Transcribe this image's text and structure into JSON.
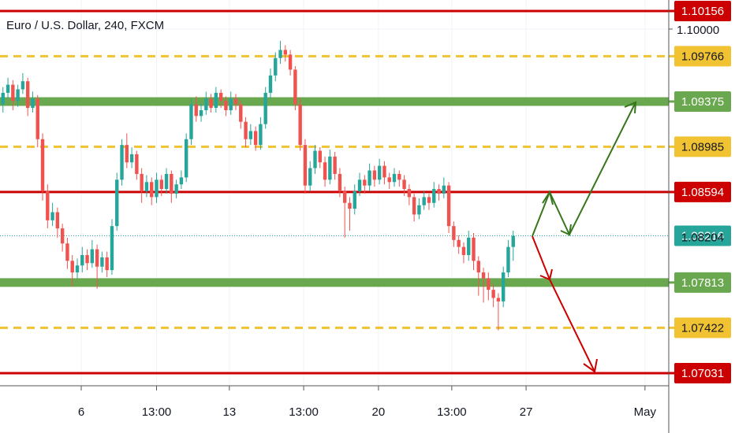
{
  "chart_data": {
    "type": "candlestick",
    "title": "Euro / U.S. Dollar, 240, FXCM",
    "ylim": [
      1.06922,
      1.10251
    ],
    "xlim": [
      -0.6,
      134.4
    ],
    "yticks": [
      {
        "value": 1.1,
        "label": "1.10000"
      }
    ],
    "xticks": [
      {
        "value": 15.8,
        "label": "6"
      },
      {
        "value": 31,
        "label": "13:00"
      },
      {
        "value": 45.7,
        "label": "13"
      },
      {
        "value": 60.7,
        "label": "13:00"
      },
      {
        "value": 75.8,
        "label": "20"
      },
      {
        "value": 90.6,
        "label": "13:00"
      },
      {
        "value": 105.6,
        "label": "27"
      },
      {
        "value": 129.6,
        "label": "May"
      }
    ],
    "up_color": "#26a69a",
    "down_color": "#ef5350",
    "grid": true,
    "levels": [
      {
        "value": 1.10156,
        "color": "#cc0000",
        "style": "solid"
      },
      {
        "value": 1.09766,
        "color": "#f1c232",
        "style": "dashed"
      },
      {
        "value": 1.09375,
        "color": "#6aa84f",
        "style": "thick"
      },
      {
        "value": 1.08985,
        "color": "#f1c232",
        "style": "dashed"
      },
      {
        "value": 1.08594,
        "color": "#cc0000",
        "style": "solid"
      },
      {
        "value": 1.07813,
        "color": "#6aa84f",
        "style": "thick"
      },
      {
        "value": 1.07422,
        "color": "#f1c232",
        "style": "dashed"
      },
      {
        "value": 1.07031,
        "color": "#cc0000",
        "style": "solid"
      }
    ],
    "last_price": {
      "value": 1.08216,
      "color": "#26a69a"
    },
    "bid_price": {
      "value": 1.08204
    },
    "candles": [
      [
        1.0935,
        1.095,
        1.0928,
        1.0945
      ],
      [
        1.0945,
        1.0958,
        1.094,
        1.0952
      ],
      [
        1.0952,
        1.0956,
        1.093,
        1.0938
      ],
      [
        1.0938,
        1.0952,
        1.0933,
        1.0948
      ],
      [
        1.0948,
        1.0962,
        1.0944,
        1.0955
      ],
      [
        1.0955,
        1.0958,
        1.0925,
        1.0932
      ],
      [
        1.0932,
        1.0946,
        1.0928,
        1.094
      ],
      [
        1.094,
        1.0943,
        1.0898,
        1.0905
      ],
      [
        1.0905,
        1.091,
        1.0852,
        1.086
      ],
      [
        1.086,
        1.0866,
        1.0828,
        1.0835
      ],
      [
        1.0835,
        1.085,
        1.083,
        1.0842
      ],
      [
        1.0842,
        1.0846,
        1.082,
        1.0828
      ],
      [
        1.0828,
        1.0832,
        1.0808,
        1.0815
      ],
      [
        1.0815,
        1.082,
        1.0793,
        1.08
      ],
      [
        1.08,
        1.0805,
        1.0778,
        1.079
      ],
      [
        1.079,
        1.0802,
        1.0785,
        1.0796
      ],
      [
        1.0796,
        1.0812,
        1.079,
        1.0805
      ],
      [
        1.0805,
        1.081,
        1.0792,
        1.0798
      ],
      [
        1.0798,
        1.0818,
        1.0794,
        1.081
      ],
      [
        1.081,
        1.0814,
        1.0776,
        1.0795
      ],
      [
        1.0795,
        1.0808,
        1.079,
        1.0803
      ],
      [
        1.0803,
        1.0808,
        1.0786,
        1.0792
      ],
      [
        1.0792,
        1.0836,
        1.0788,
        1.083
      ],
      [
        1.083,
        1.0876,
        1.0826,
        1.087
      ],
      [
        1.087,
        1.0905,
        1.0865,
        1.09
      ],
      [
        1.09,
        1.091,
        1.088,
        1.0885
      ],
      [
        1.0885,
        1.0898,
        1.088,
        1.0892
      ],
      [
        1.0892,
        1.0895,
        1.087,
        1.0875
      ],
      [
        1.0875,
        1.088,
        1.085,
        1.086
      ],
      [
        1.086,
        1.0874,
        1.0855,
        1.0868
      ],
      [
        1.0868,
        1.0872,
        1.0848,
        1.0855
      ],
      [
        1.0855,
        1.0876,
        1.085,
        1.087
      ],
      [
        1.087,
        1.0874,
        1.0856,
        1.0862
      ],
      [
        1.0862,
        1.088,
        1.0858,
        1.0875
      ],
      [
        1.0875,
        1.0878,
        1.085,
        1.0858
      ],
      [
        1.0858,
        1.087,
        1.0854,
        1.0866
      ],
      [
        1.0866,
        1.0878,
        1.0862,
        1.0872
      ],
      [
        1.0872,
        1.091,
        1.0868,
        1.0905
      ],
      [
        1.0905,
        1.094,
        1.09,
        1.0935
      ],
      [
        1.0935,
        1.0942,
        1.092,
        1.0925
      ],
      [
        1.0925,
        1.0936,
        1.092,
        1.093
      ],
      [
        1.093,
        1.0946,
        1.0926,
        1.094
      ],
      [
        1.094,
        1.0944,
        1.0928,
        1.0932
      ],
      [
        1.0932,
        1.095,
        1.0928,
        1.0945
      ],
      [
        1.0945,
        1.0948,
        1.0932,
        1.0938
      ],
      [
        1.0938,
        1.0942,
        1.0925,
        1.093
      ],
      [
        1.093,
        1.0946,
        1.0926,
        1.094
      ],
      [
        1.094,
        1.0944,
        1.093,
        1.0935
      ],
      [
        1.0935,
        1.0938,
        1.0914,
        1.092
      ],
      [
        1.092,
        1.0924,
        1.0898,
        1.0905
      ],
      [
        1.0905,
        1.0918,
        1.09,
        1.0912
      ],
      [
        1.0912,
        1.0916,
        1.0895,
        1.09
      ],
      [
        1.09,
        1.0924,
        1.0896,
        1.0918
      ],
      [
        1.0918,
        1.095,
        1.0914,
        1.0945
      ],
      [
        1.0945,
        1.0966,
        1.094,
        1.096
      ],
      [
        1.096,
        1.098,
        1.0955,
        1.0975
      ],
      [
        1.0975,
        1.099,
        1.097,
        1.0982
      ],
      [
        1.0982,
        1.0986,
        1.0972,
        1.0978
      ],
      [
        1.0978,
        1.0982,
        1.096,
        1.0965
      ],
      [
        1.0965,
        1.0968,
        1.093,
        1.0935
      ],
      [
        1.0935,
        1.094,
        1.0895,
        1.09
      ],
      [
        1.09,
        1.0905,
        1.0858,
        1.0865
      ],
      [
        1.0865,
        1.0886,
        1.086,
        1.088
      ],
      [
        1.088,
        1.09,
        1.0875,
        1.0895
      ],
      [
        1.0895,
        1.0898,
        1.088,
        1.0885
      ],
      [
        1.0885,
        1.089,
        1.0864,
        1.087
      ],
      [
        1.087,
        1.0896,
        1.0866,
        1.089
      ],
      [
        1.089,
        1.0894,
        1.087,
        1.0875
      ],
      [
        1.0875,
        1.088,
        1.0855,
        1.086
      ],
      [
        1.086,
        1.0864,
        1.082,
        1.085
      ],
      [
        1.085,
        1.0855,
        1.0826,
        1.0845
      ],
      [
        1.0845,
        1.0866,
        1.084,
        1.086
      ],
      [
        1.086,
        1.0876,
        1.0856,
        1.087
      ],
      [
        1.087,
        1.0874,
        1.0858,
        1.0865
      ],
      [
        1.0865,
        1.0884,
        1.086,
        1.0878
      ],
      [
        1.0878,
        1.0882,
        1.0864,
        1.087
      ],
      [
        1.087,
        1.0888,
        1.0866,
        1.0882
      ],
      [
        1.0882,
        1.0886,
        1.0866,
        1.0872
      ],
      [
        1.0872,
        1.0876,
        1.0862,
        1.0868
      ],
      [
        1.0868,
        1.088,
        1.0864,
        1.0875
      ],
      [
        1.0875,
        1.0878,
        1.0864,
        1.087
      ],
      [
        1.087,
        1.0874,
        1.0856,
        1.0862
      ],
      [
        1.0862,
        1.0866,
        1.0848,
        1.0855
      ],
      [
        1.0855,
        1.0858,
        1.0834,
        1.084
      ],
      [
        1.084,
        1.0854,
        1.0836,
        1.0848
      ],
      [
        1.0848,
        1.086,
        1.0844,
        1.0855
      ],
      [
        1.0855,
        1.0858,
        1.0844,
        1.085
      ],
      [
        1.085,
        1.0868,
        1.0846,
        1.0862
      ],
      [
        1.0862,
        1.0866,
        1.0852,
        1.0858
      ],
      [
        1.0858,
        1.0872,
        1.0854,
        1.0865
      ],
      [
        1.0865,
        1.0868,
        1.0824,
        1.083
      ],
      [
        1.083,
        1.0834,
        1.0812,
        1.0818
      ],
      [
        1.0818,
        1.0822,
        1.0806,
        1.0812
      ],
      [
        1.0812,
        1.0816,
        1.0798,
        1.0805
      ],
      [
        1.0805,
        1.0826,
        1.08,
        1.082
      ],
      [
        1.082,
        1.0824,
        1.0792,
        1.08
      ],
      [
        1.08,
        1.0804,
        1.077,
        1.079
      ],
      [
        1.079,
        1.0794,
        1.0764,
        1.0785
      ],
      [
        1.0785,
        1.079,
        1.0766,
        1.0775
      ],
      [
        1.0775,
        1.078,
        1.076,
        1.0768
      ],
      [
        1.0768,
        1.0772,
        1.074,
        1.0765
      ],
      [
        1.0765,
        1.0795,
        1.076,
        1.079
      ],
      [
        1.079,
        1.0818,
        1.0786,
        1.0812
      ],
      [
        1.0812,
        1.0826,
        1.08,
        1.08216
      ]
    ]
  }
}
